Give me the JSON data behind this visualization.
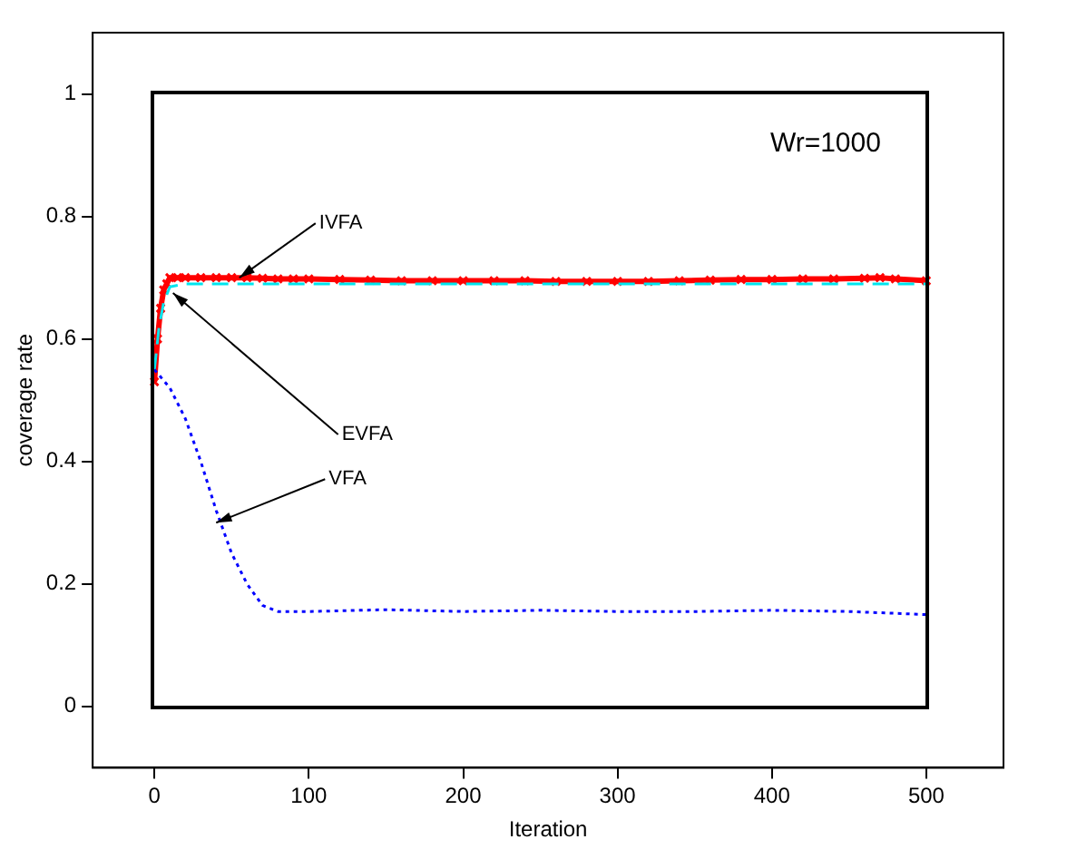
{
  "chart_data": {
    "type": "line",
    "xlabel": "Iteration",
    "ylabel": "coverage rate",
    "xlim": [
      -40,
      550
    ],
    "xticks": [
      0,
      100,
      200,
      300,
      400,
      500
    ],
    "ylim": [
      -0.1,
      1.1
    ],
    "yticks": [
      0,
      0.2,
      0.4,
      0.6,
      0.8,
      1
    ],
    "grid": false,
    "legend": false,
    "series": [
      {
        "color": "#0000ff",
        "line_style": "dotted",
        "marker": "none",
        "x": [
          0,
          10,
          20,
          30,
          40,
          50,
          60,
          70,
          80,
          100,
          150,
          200,
          250,
          300,
          350,
          400,
          450,
          500
        ],
        "values": [
          0.55,
          0.52,
          0.47,
          0.4,
          0.32,
          0.25,
          0.2,
          0.165,
          0.155,
          0.155,
          0.158,
          0.155,
          0.157,
          0.155,
          0.155,
          0.157,
          0.155,
          0.15
        ]
      },
      {
        "color": "#00e5ee",
        "line_style": "dashed",
        "marker": "none",
        "x": [
          0,
          3,
          6,
          10,
          20,
          100,
          200,
          300,
          400,
          500
        ],
        "values": [
          0.55,
          0.62,
          0.66,
          0.685,
          0.69,
          0.69,
          0.69,
          0.69,
          0.69,
          0.69
        ]
      },
      {
        "color": "#ff0000",
        "line_style": "solid",
        "marker": "cross",
        "x": [
          0,
          2,
          4,
          6,
          8,
          10,
          15,
          20,
          30,
          40,
          50,
          60,
          70,
          80,
          90,
          100,
          120,
          140,
          160,
          180,
          200,
          220,
          240,
          260,
          280,
          300,
          320,
          340,
          360,
          380,
          400,
          420,
          440,
          460,
          470,
          480,
          500
        ],
        "values": [
          0.53,
          0.6,
          0.65,
          0.68,
          0.69,
          0.7,
          0.7,
          0.7,
          0.7,
          0.7,
          0.7,
          0.7,
          0.699,
          0.698,
          0.698,
          0.698,
          0.697,
          0.696,
          0.695,
          0.695,
          0.695,
          0.695,
          0.695,
          0.694,
          0.694,
          0.694,
          0.694,
          0.695,
          0.696,
          0.697,
          0.697,
          0.698,
          0.698,
          0.699,
          0.7,
          0.698,
          0.695
        ]
      }
    ],
    "annotations": [
      {
        "text": "IVFA",
        "x": 55,
        "y": 0.7
      },
      {
        "text": "EVFA",
        "x": 12,
        "y": 0.675
      },
      {
        "text": "VFA",
        "x": 40,
        "y": 0.3
      },
      "Wr=1000"
    ]
  }
}
